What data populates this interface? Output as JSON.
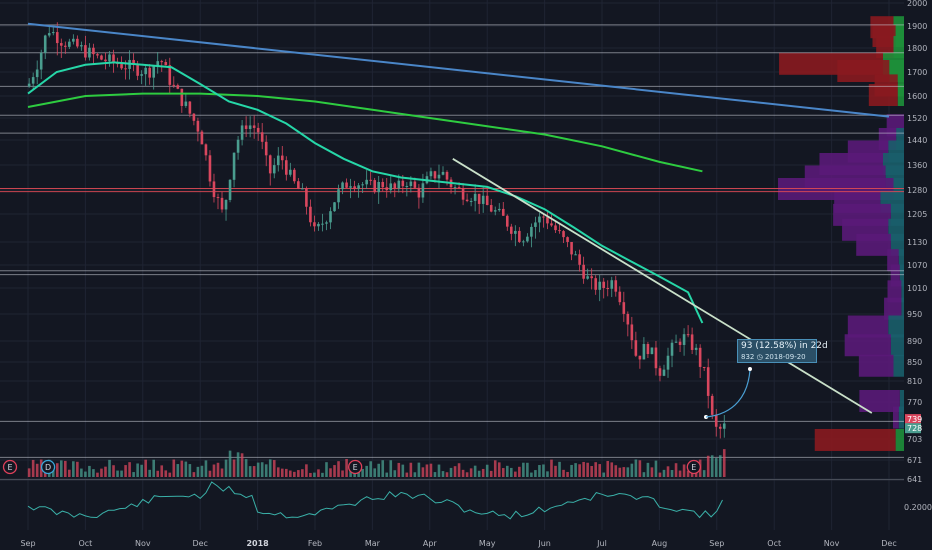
{
  "chart_data": {
    "type": "candlestick",
    "x_ticks": [
      "Sep",
      "Oct",
      "Nov",
      "Dec",
      "2018",
      "Feb",
      "Mar",
      "Apr",
      "May",
      "Jun",
      "Jul",
      "Aug",
      "Sep",
      "Oct",
      "Nov",
      "Dec"
    ],
    "y_ticks": [
      "2000",
      "1900",
      "1800",
      "1700",
      "1600",
      "1520",
      "1440",
      "1360",
      "1280",
      "1205",
      "1130",
      "1070",
      "1010",
      "950",
      "890",
      "850",
      "810",
      "770",
      "703",
      "671",
      "641"
    ],
    "indicator_tick": "0.2000",
    "price_labels": {
      "upper": "739",
      "lower": "728"
    },
    "event_markers": [
      {
        "label": "E",
        "color": "#e0405a",
        "month_index": 0
      },
      {
        "label": "D",
        "color": "#3aa6d8",
        "month_index": 0.35
      },
      {
        "label": "E",
        "color": "#e0405a",
        "month_index": 5.7
      },
      {
        "label": "E",
        "color": "#e0405a",
        "month_index": 11.6
      }
    ],
    "annotation": {
      "line1": "93 (12.58%) in 22d",
      "line2": "832",
      "line3": "2018-09-20"
    },
    "price_path": [
      [
        0,
        1640
      ],
      [
        0.2,
        1760
      ],
      [
        0.35,
        1890
      ],
      [
        0.6,
        1830
      ],
      [
        0.9,
        1800
      ],
      [
        1.2,
        1760
      ],
      [
        1.5,
        1740
      ],
      [
        1.8,
        1720
      ],
      [
        2.1,
        1700
      ],
      [
        2.3,
        1760
      ],
      [
        2.5,
        1650
      ],
      [
        2.7,
        1580
      ],
      [
        3.0,
        1470
      ],
      [
        3.2,
        1300
      ],
      [
        3.4,
        1200
      ],
      [
        3.6,
        1420
      ],
      [
        3.8,
        1500
      ],
      [
        4.0,
        1480
      ],
      [
        4.2,
        1330
      ],
      [
        4.4,
        1390
      ],
      [
        4.6,
        1310
      ],
      [
        4.8,
        1260
      ],
      [
        5.0,
        1150
      ],
      [
        5.2,
        1200
      ],
      [
        5.4,
        1270
      ],
      [
        5.6,
        1310
      ],
      [
        5.8,
        1300
      ],
      [
        6.0,
        1290
      ],
      [
        6.2,
        1300
      ],
      [
        6.4,
        1280
      ],
      [
        6.6,
        1310
      ],
      [
        6.8,
        1270
      ],
      [
        7.0,
        1320
      ],
      [
        7.2,
        1340
      ],
      [
        7.4,
        1290
      ],
      [
        7.6,
        1270
      ],
      [
        7.8,
        1260
      ],
      [
        8.0,
        1230
      ],
      [
        8.3,
        1190
      ],
      [
        8.6,
        1140
      ],
      [
        8.8,
        1180
      ],
      [
        9.0,
        1200
      ],
      [
        9.2,
        1160
      ],
      [
        9.5,
        1100
      ],
      [
        9.8,
        1020
      ],
      [
        10.0,
        1010
      ],
      [
        10.2,
        1030
      ],
      [
        10.4,
        960
      ],
      [
        10.6,
        860
      ],
      [
        10.8,
        880
      ],
      [
        11.0,
        830
      ],
      [
        11.2,
        870
      ],
      [
        11.4,
        900
      ],
      [
        11.6,
        880
      ],
      [
        11.8,
        820
      ],
      [
        11.95,
        720
      ],
      [
        12.1,
        720
      ],
      [
        12.15,
        728
      ]
    ],
    "ma_fast": [
      [
        0,
        1610
      ],
      [
        0.5,
        1700
      ],
      [
        1.0,
        1730
      ],
      [
        1.5,
        1740
      ],
      [
        2.0,
        1730
      ],
      [
        2.5,
        1720
      ],
      [
        3.0,
        1650
      ],
      [
        3.5,
        1580
      ],
      [
        4.0,
        1550
      ],
      [
        4.5,
        1500
      ],
      [
        5.0,
        1430
      ],
      [
        5.5,
        1380
      ],
      [
        6.0,
        1340
      ],
      [
        6.5,
        1320
      ],
      [
        7.0,
        1310
      ],
      [
        7.5,
        1300
      ],
      [
        8.0,
        1290
      ],
      [
        8.5,
        1260
      ],
      [
        9.0,
        1220
      ],
      [
        9.5,
        1170
      ],
      [
        10.0,
        1120
      ],
      [
        10.5,
        1080
      ],
      [
        11.0,
        1040
      ],
      [
        11.5,
        1000
      ],
      [
        11.75,
        930
      ]
    ],
    "ma_slow": [
      [
        0,
        1560
      ],
      [
        1.0,
        1600
      ],
      [
        2.0,
        1610
      ],
      [
        3.0,
        1610
      ],
      [
        4.0,
        1600
      ],
      [
        5.0,
        1580
      ],
      [
        6.0,
        1550
      ],
      [
        7.0,
        1520
      ],
      [
        8.0,
        1490
      ],
      [
        9.0,
        1460
      ],
      [
        10.0,
        1420
      ],
      [
        11.0,
        1370
      ],
      [
        11.75,
        1340
      ]
    ],
    "long_trend": [
      [
        0,
        1910
      ],
      [
        15.0,
        1525
      ]
    ],
    "down_trend": [
      [
        7.4,
        1380
      ],
      [
        14.7,
        750
      ]
    ],
    "horizontal_levels": [
      1905,
      1780,
      1640,
      1530,
      1465,
      1285,
      1275,
      1055,
      1045,
      735,
      675,
      640
    ],
    "red_levels": [
      1285,
      1275
    ],
    "volume_profile": [
      {
        "price": 1890,
        "green": 0.25,
        "red": 0.2,
        "purple": 0
      },
      {
        "price": 1850,
        "green": 0.2,
        "red": 0.2,
        "purple": 0
      },
      {
        "price": 1800,
        "green": 0.25,
        "red": 0.15,
        "purple": 0
      },
      {
        "price": 1730,
        "green": 0.5,
        "red": 0.9,
        "purple": 0
      },
      {
        "price": 1700,
        "green": 0.35,
        "red": 0.45,
        "purple": 0
      },
      {
        "price": 1640,
        "green": 0.15,
        "red": 0.2,
        "purple": 0
      },
      {
        "price": 1600,
        "green": 0.15,
        "red": 0.25,
        "purple": 0
      },
      {
        "price": 1490,
        "green": 0.0,
        "red": 0.0,
        "purple": 0.15
      },
      {
        "price": 1440,
        "green": 0.15,
        "red": 0,
        "purple": 0.15
      },
      {
        "price": 1400,
        "green": 0.3,
        "red": 0,
        "purple": 0.35
      },
      {
        "price": 1360,
        "green": 0.4,
        "red": 0,
        "purple": 0.55
      },
      {
        "price": 1320,
        "green": 0.35,
        "red": 0,
        "purple": 0.7
      },
      {
        "price": 1280,
        "green": 0.2,
        "red": 0,
        "purple": 1.0
      },
      {
        "price": 1240,
        "green": 0.45,
        "red": 0,
        "purple": 0.4
      },
      {
        "price": 1200,
        "green": 0.25,
        "red": 0,
        "purple": 0.5
      },
      {
        "price": 1160,
        "green": 0.3,
        "red": 0,
        "purple": 0.4
      },
      {
        "price": 1120,
        "green": 0.25,
        "red": 0,
        "purple": 0.3
      },
      {
        "price": 1080,
        "green": 0.1,
        "red": 0,
        "purple": 0.1
      },
      {
        "price": 1040,
        "green": 0.08,
        "red": 0,
        "purple": 0.08
      },
      {
        "price": 1000,
        "green": 0.05,
        "red": 0,
        "purple": 0.12
      },
      {
        "price": 960,
        "green": 0.05,
        "red": 0,
        "purple": 0.15
      },
      {
        "price": 920,
        "green": 0.3,
        "red": 0,
        "purple": 0.35
      },
      {
        "price": 880,
        "green": 0.25,
        "red": 0,
        "purple": 0.4
      },
      {
        "price": 840,
        "green": 0.2,
        "red": 0,
        "purple": 0.3
      },
      {
        "price": 770,
        "green": 0.08,
        "red": 0,
        "purple": 0.35
      },
      {
        "price": 740,
        "green": 0.1,
        "red": 0,
        "purple": 0.05
      },
      {
        "price": 700,
        "green": 0.2,
        "red": 0.7,
        "purple": 0
      }
    ]
  },
  "colors": {
    "background": "#131722",
    "up": "#4a9d8f",
    "down": "#d9475e",
    "ma_fast": "#26d7a8",
    "ma_slow": "#2ecc40",
    "long_trend": "#4a86c8",
    "down_trend": "#c9e0c9",
    "level": "#cfd3dc",
    "red_level": "#e04a55",
    "vp_green": "#1e8f3a",
    "vp_red": "#8a1a1f",
    "vp_purple": "#5a1a78",
    "vp_teal": "#1a5e6a",
    "indicator": "#3ab0a8"
  }
}
